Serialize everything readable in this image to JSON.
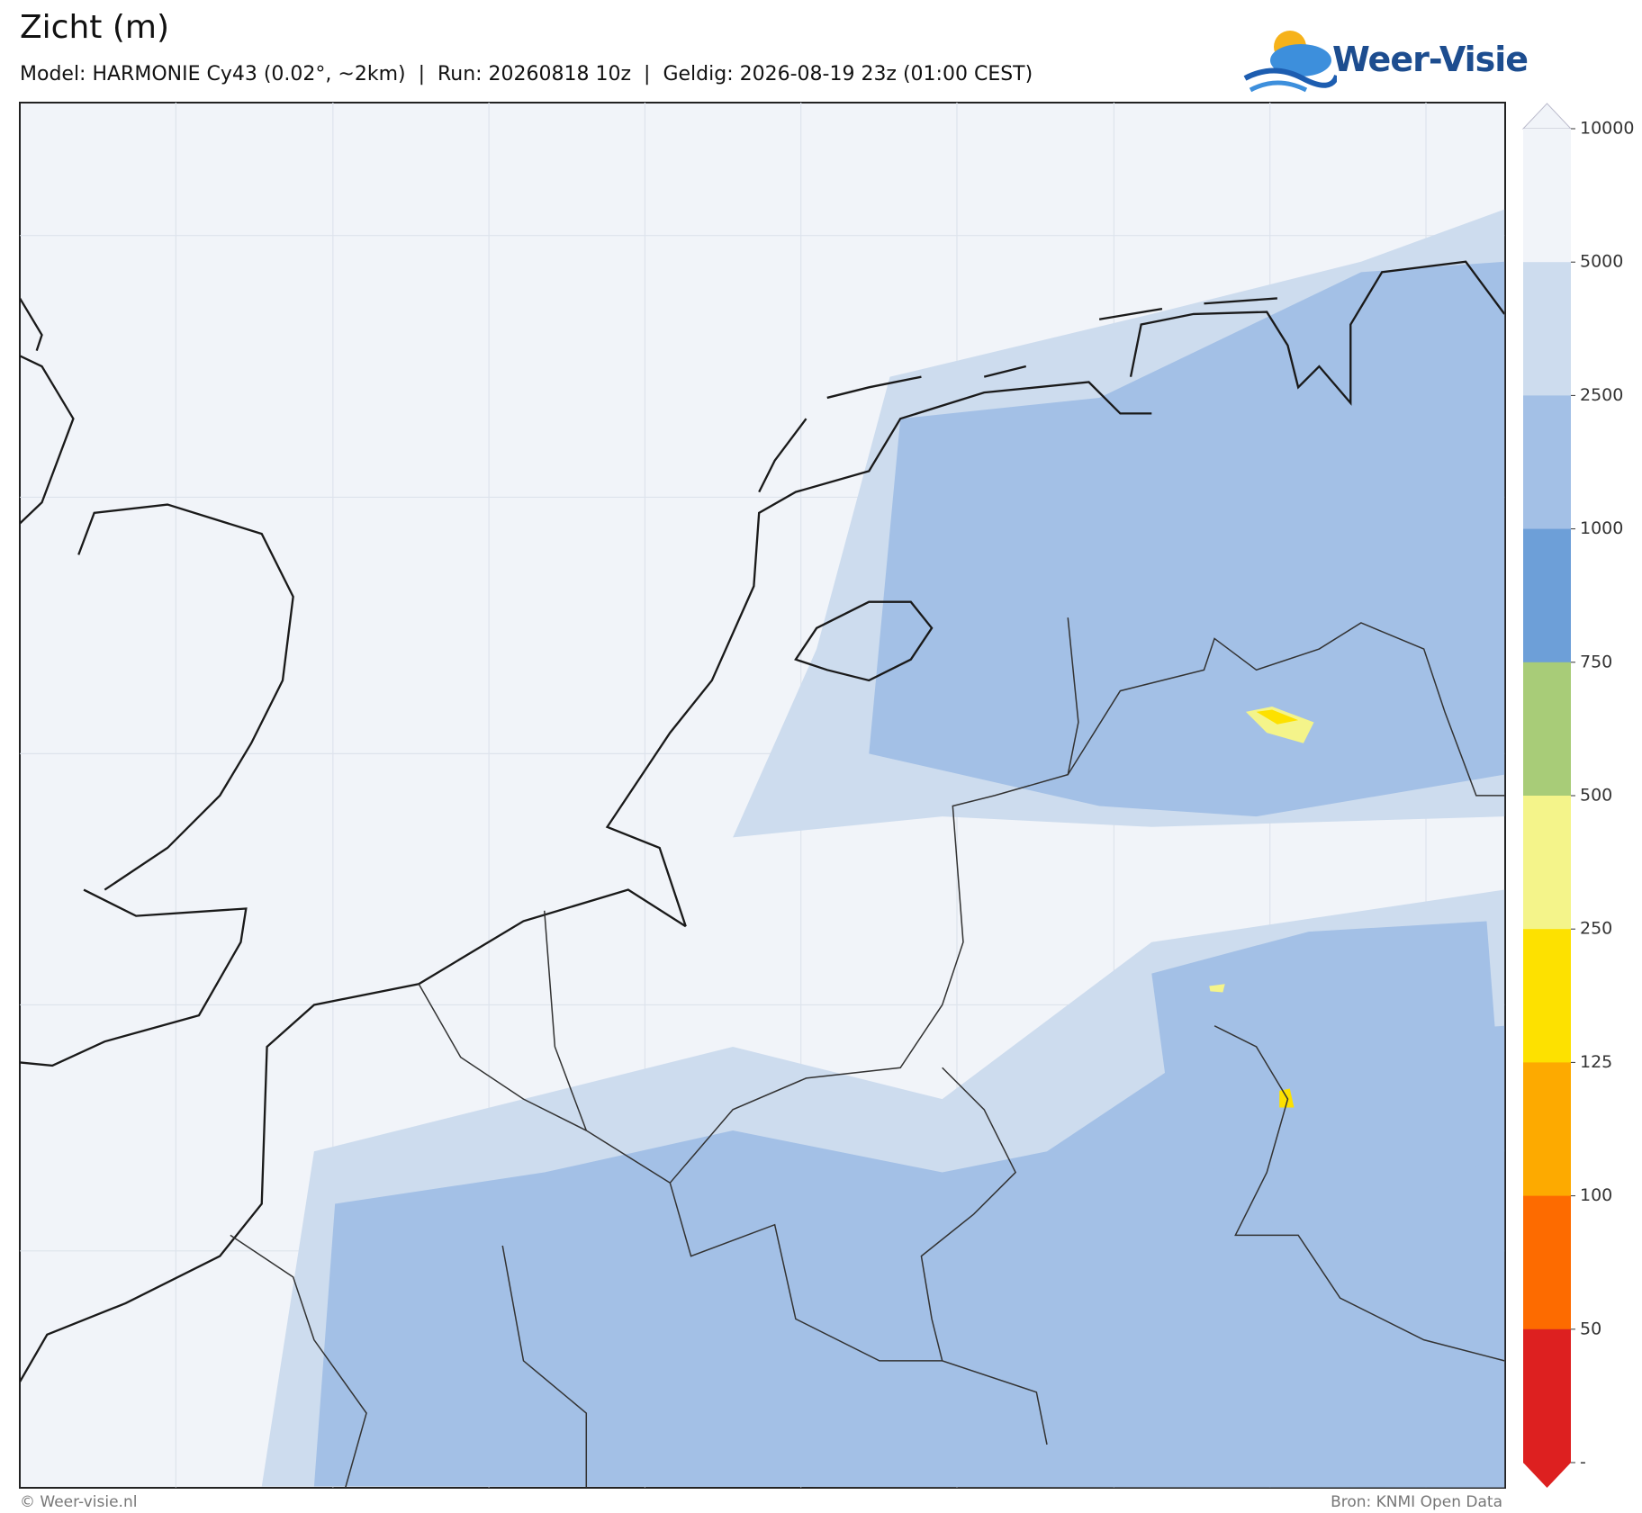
{
  "header": {
    "title": "Zicht (m)",
    "subtitle": "Model: HARMONIE Cy43 (0.02°, ~2km)  |  Run: 20260818 10z  |  Geldig: 2026-08-19 23z (01:00 CEST)",
    "logo": "Weer-Visie"
  },
  "colorbar": {
    "ticks": [
      "10000",
      "5000",
      "2500",
      "1000",
      "750",
      "500",
      "250",
      "125",
      "100",
      "50",
      "-"
    ],
    "colors": [
      "#f1f4f9",
      "#cddcee",
      "#a3c0e6",
      "#6d9fd8",
      "#a8cc78",
      "#f4f48a",
      "#fde100",
      "#fdaa00",
      "#fd6b00",
      "#dd2020"
    ]
  },
  "footer": {
    "left": "© Weer-visie.nl",
    "right": "Bron: KNMI Open Data"
  }
}
